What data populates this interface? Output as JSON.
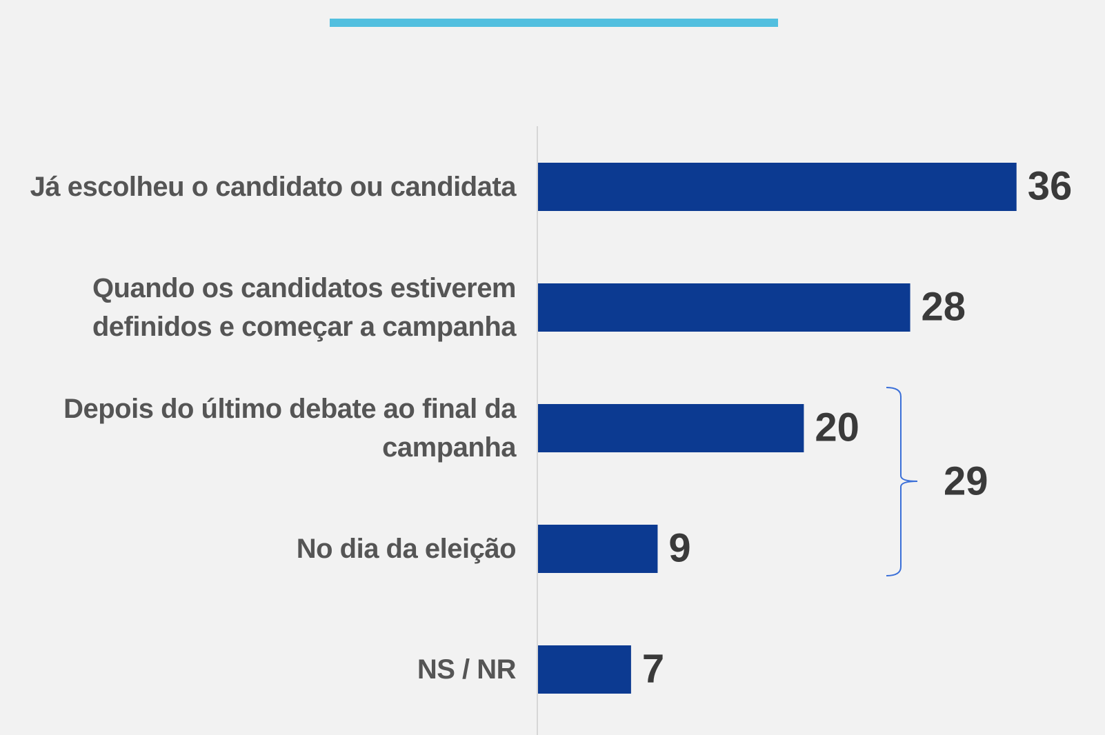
{
  "chart_data": {
    "type": "bar",
    "orientation": "horizontal",
    "categories": [
      "Já escolheu o candidato ou candidata",
      "Quando os candidatos estiverem definidos e começar a campanha",
      "Depois do último debate ao final da campanha",
      "No dia da eleição",
      "NS / NR"
    ],
    "values": [
      36,
      28,
      20,
      9,
      7
    ],
    "color": "#0c3a91",
    "annotations": [
      {
        "text": "29"
      }
    ]
  }
}
